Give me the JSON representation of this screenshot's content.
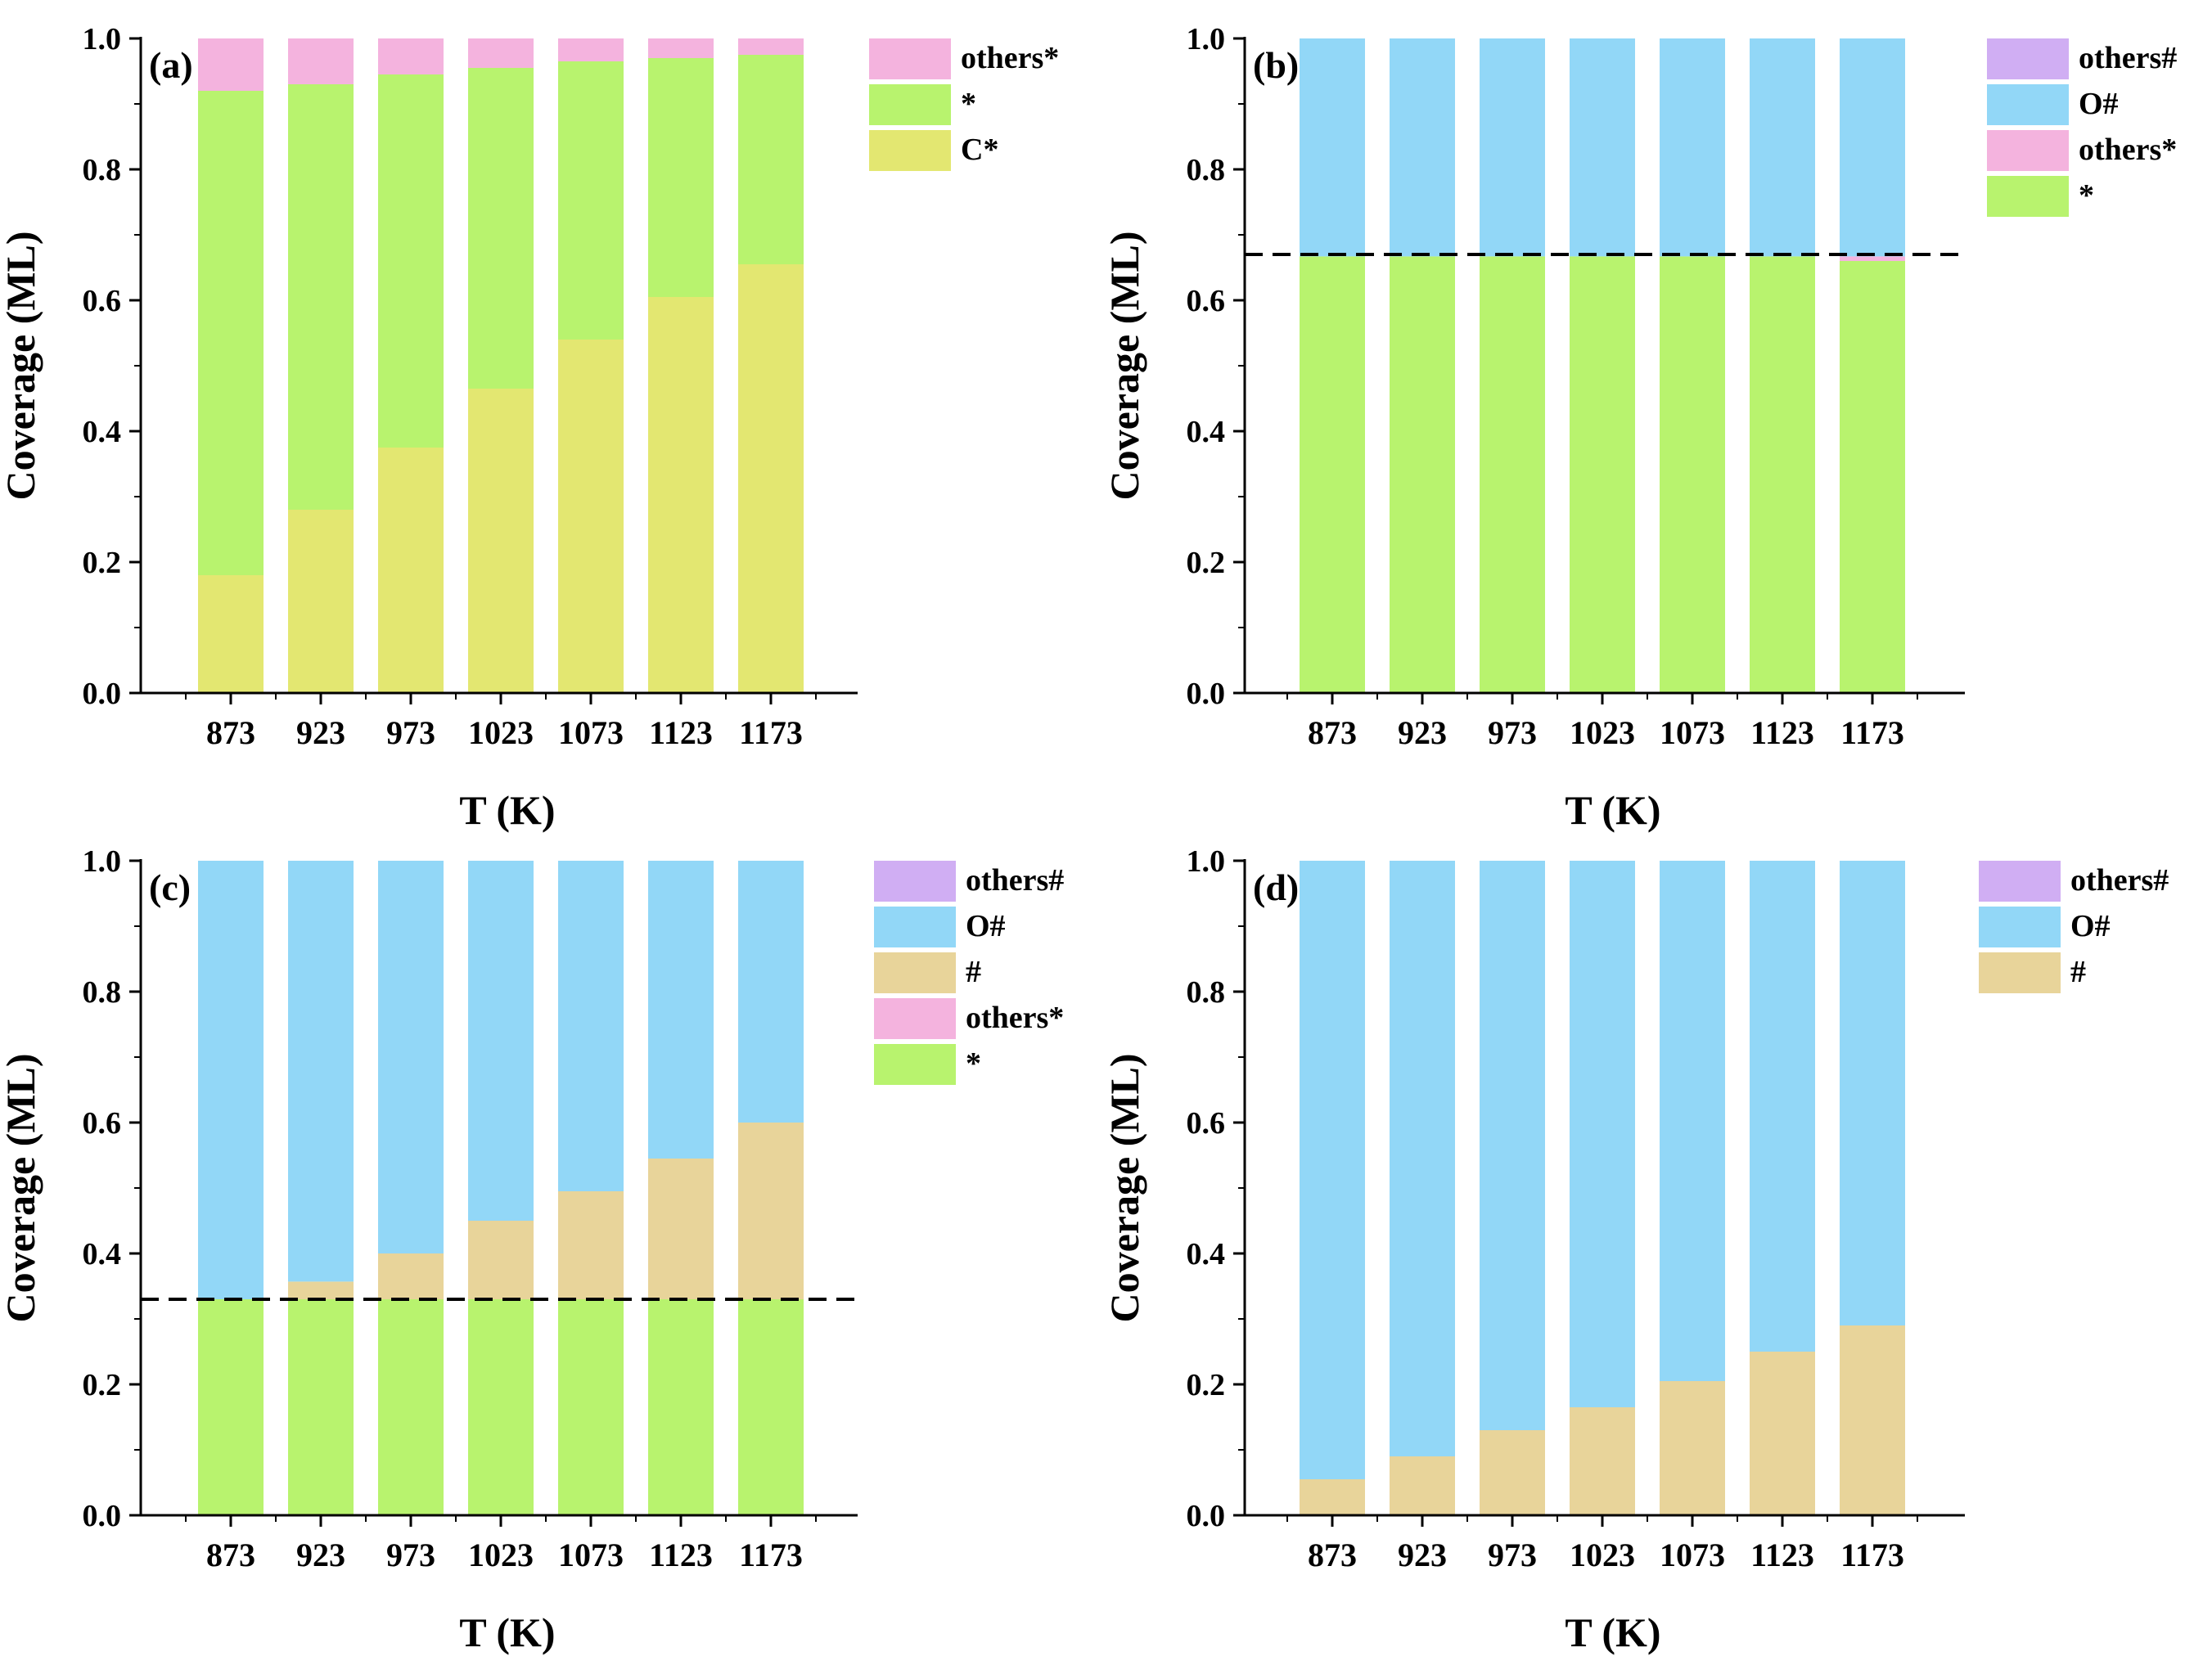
{
  "colors": {
    "C*": "#e3e771",
    "*": "#b8f36e",
    "others*": "#f4b3de",
    "#": "#e8d49a",
    "O#": "#92d7f7",
    "others#": "#d0aef3"
  },
  "chart_data": [
    {
      "type": "bar",
      "stacked": true,
      "panel_label": "(a)",
      "xlabel": "T (K)",
      "ylabel": "Coverage (ML)",
      "ylim": [
        0,
        1
      ],
      "yticks": [
        "0.0",
        "0.2",
        "0.4",
        "0.6",
        "0.8",
        "1.0"
      ],
      "categories": [
        "873",
        "923",
        "973",
        "1023",
        "1073",
        "1123",
        "1173"
      ],
      "series": [
        {
          "name": "C*",
          "values": [
            0.18,
            0.28,
            0.375,
            0.465,
            0.54,
            0.605,
            0.655
          ]
        },
        {
          "name": "*",
          "values": [
            0.74,
            0.65,
            0.57,
            0.49,
            0.425,
            0.365,
            0.32
          ]
        },
        {
          "name": "others*",
          "values": [
            0.08,
            0.07,
            0.055,
            0.045,
            0.035,
            0.03,
            0.025
          ]
        }
      ],
      "legend": [
        "others*",
        "*",
        "C*"
      ]
    },
    {
      "type": "bar",
      "stacked": true,
      "panel_label": "(b)",
      "xlabel": "T (K)",
      "ylabel": "Coverage (ML)",
      "ylim": [
        0,
        1
      ],
      "yticks": [
        "0.0",
        "0.2",
        "0.4",
        "0.6",
        "0.8",
        "1.0"
      ],
      "categories": [
        "873",
        "923",
        "973",
        "1023",
        "1073",
        "1123",
        "1173"
      ],
      "series": [
        {
          "name": "*",
          "values": [
            0.667,
            0.667,
            0.667,
            0.667,
            0.667,
            0.667,
            0.66
          ]
        },
        {
          "name": "others*",
          "values": [
            0.0,
            0.0,
            0.0,
            0.0,
            0.0,
            0.0,
            0.007
          ]
        },
        {
          "name": "O#",
          "values": [
            0.333,
            0.333,
            0.333,
            0.333,
            0.333,
            0.333,
            0.333
          ]
        },
        {
          "name": "others#",
          "values": [
            0,
            0,
            0,
            0,
            0,
            0,
            0
          ]
        }
      ],
      "reference_line": 0.67,
      "legend": [
        "others#",
        "O#",
        "others*",
        "*"
      ]
    },
    {
      "type": "bar",
      "stacked": true,
      "panel_label": "(c)",
      "xlabel": "T (K)",
      "ylabel": "Coverage (ML)",
      "ylim": [
        0,
        1
      ],
      "yticks": [
        "0.0",
        "0.2",
        "0.4",
        "0.6",
        "0.8",
        "1.0"
      ],
      "categories": [
        "873",
        "923",
        "973",
        "1023",
        "1073",
        "1123",
        "1173"
      ],
      "series": [
        {
          "name": "*",
          "values": [
            0.33,
            0.33,
            0.33,
            0.33,
            0.33,
            0.33,
            0.33
          ]
        },
        {
          "name": "others*",
          "values": [
            0,
            0,
            0,
            0,
            0,
            0,
            0
          ]
        },
        {
          "name": "#",
          "values": [
            0.0,
            0.027,
            0.07,
            0.12,
            0.165,
            0.215,
            0.27
          ]
        },
        {
          "name": "O#",
          "values": [
            0.67,
            0.643,
            0.6,
            0.55,
            0.505,
            0.455,
            0.4
          ]
        },
        {
          "name": "others#",
          "values": [
            0,
            0,
            0,
            0,
            0,
            0,
            0
          ]
        }
      ],
      "reference_line": 0.33,
      "legend": [
        "others#",
        "O#",
        "#",
        "others*",
        "*"
      ]
    },
    {
      "type": "bar",
      "stacked": true,
      "panel_label": "(d)",
      "xlabel": "T (K)",
      "ylabel": "Coverage (ML)",
      "ylim": [
        0,
        1
      ],
      "yticks": [
        "0.0",
        "0.2",
        "0.4",
        "0.6",
        "0.8",
        "1.0"
      ],
      "categories": [
        "873",
        "923",
        "973",
        "1023",
        "1073",
        "1123",
        "1173"
      ],
      "series": [
        {
          "name": "#",
          "values": [
            0.055,
            0.09,
            0.13,
            0.165,
            0.205,
            0.25,
            0.29
          ]
        },
        {
          "name": "O#",
          "values": [
            0.945,
            0.91,
            0.87,
            0.835,
            0.795,
            0.75,
            0.71
          ]
        },
        {
          "name": "others#",
          "values": [
            0,
            0,
            0,
            0,
            0,
            0,
            0
          ]
        }
      ],
      "legend": [
        "others#",
        "O#",
        "#"
      ]
    }
  ]
}
